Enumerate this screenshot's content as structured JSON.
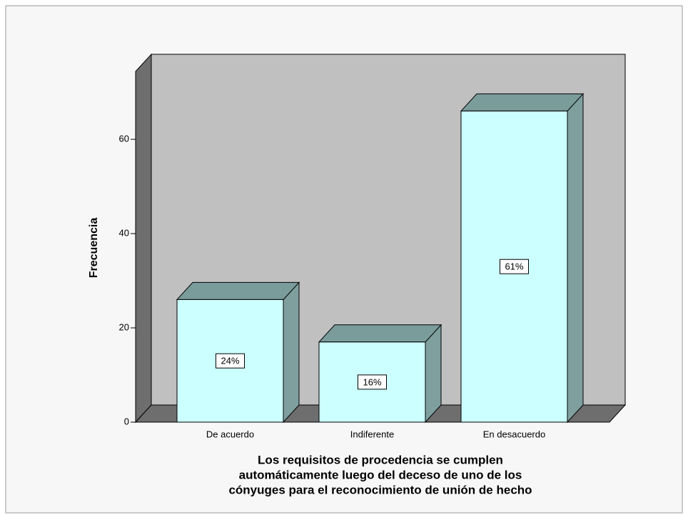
{
  "chart_data": {
    "type": "bar3d",
    "ylabel": "Frecuencia",
    "xlabel": [
      "Los requisitos de procedencia se cumplen",
      "automáticamente luego del deceso de uno de los",
      "cónyuges para el reconocimiento de unión de hecho"
    ],
    "categories": [
      "De acuerdo",
      "Indiferente",
      "En desacuerdo"
    ],
    "values": [
      26,
      17,
      66
    ],
    "percentages": [
      24,
      16,
      61
    ],
    "percentage_labels": [
      "24%",
      "16%",
      "61%"
    ],
    "color": "#ccffff",
    "ylim": [
      0,
      74.4
    ],
    "yticks": [
      0,
      20,
      40,
      60
    ]
  }
}
